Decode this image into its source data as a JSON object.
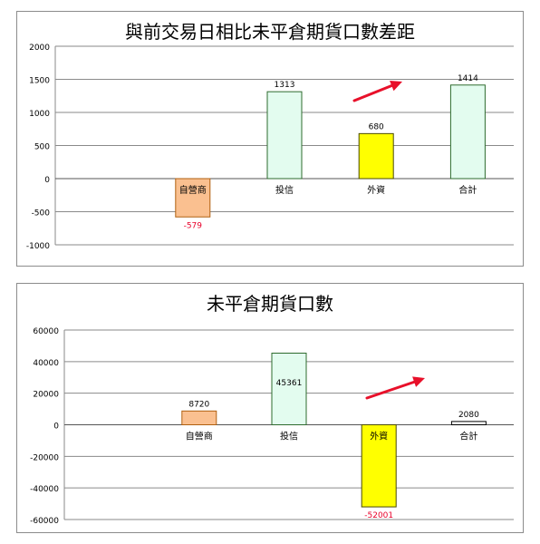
{
  "chart_data": [
    {
      "type": "bar",
      "title": "與前交易日相比未平倉期貨口數差距",
      "categories": [
        "",
        "自營商",
        "投信",
        "外資",
        "合計"
      ],
      "values": [
        null,
        -579,
        1313,
        680,
        1414
      ],
      "data_labels": [
        "",
        "-579",
        "1313",
        "680",
        "1414"
      ],
      "bar_colors": [
        "#ffffff",
        "#fac090",
        "#e3fcef",
        "#ffff00",
        "#e3fcef"
      ],
      "bar_borders": [
        "#ffffff",
        "#b06010",
        "#2e6b2e",
        "#4a4a00",
        "#2e6b2e"
      ],
      "negative_label_color": "#e8002a",
      "ylim": [
        -1000,
        2000
      ],
      "yticks": [
        "2000",
        "1500",
        "1000",
        "500",
        "0",
        "-500",
        "-1000"
      ],
      "ytick_values": [
        2000,
        1500,
        1000,
        500,
        0,
        -500,
        -1000
      ],
      "grid": true,
      "legend": "none",
      "annotation": "red upward arrow between 外資 and 合計",
      "xlabel": "",
      "ylabel": ""
    },
    {
      "type": "bar",
      "title": "未平倉期貨口數",
      "categories": [
        "",
        "自營商",
        "投信",
        "外資",
        "合計"
      ],
      "values": [
        null,
        8720,
        45361,
        -52001,
        2080
      ],
      "data_labels": [
        "",
        "8720",
        "45361",
        "-52001",
        "2080"
      ],
      "bar_colors": [
        "#ffffff",
        "#fac090",
        "#e3fcef",
        "#ffff00",
        "#ffffff"
      ],
      "bar_borders": [
        "#ffffff",
        "#b06010",
        "#2e6b2e",
        "#4a4a00",
        "#000000"
      ],
      "negative_label_color": "#e8002a",
      "ylim": [
        -60000,
        60000
      ],
      "yticks": [
        "60000",
        "40000",
        "20000",
        "0",
        "-20000",
        "-40000",
        "-60000"
      ],
      "ytick_values": [
        60000,
        40000,
        20000,
        0,
        -20000,
        -40000,
        -60000
      ],
      "grid": true,
      "legend": "none",
      "annotation": "red upward arrow between 外資 and 合計",
      "xlabel": "",
      "ylabel": ""
    }
  ],
  "colors": {
    "grid": "#8a8a8a",
    "arrow": "#e8102a",
    "frame": "#8c8c8c"
  }
}
